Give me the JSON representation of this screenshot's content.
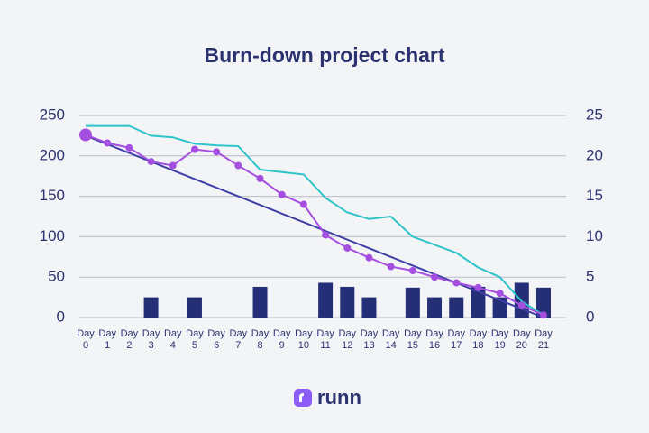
{
  "chart_data": {
    "type": "burndown",
    "title": "Burn-down project chart",
    "categories": [
      "Day 0",
      "Day 1",
      "Day 2",
      "Day 3",
      "Day 4",
      "Day 5",
      "Day 6",
      "Day 7",
      "Day 8",
      "Day 9",
      "Day 10",
      "Day 11",
      "Day 12",
      "Day 13",
      "Day 14",
      "Day 15",
      "Day 16",
      "Day 17",
      "Day 18",
      "Day 19",
      "Day 20",
      "Day 21"
    ],
    "series": [
      {
        "type": "bar",
        "axis": "y2",
        "color": "#252f78",
        "values": [
          null,
          null,
          null,
          2.5,
          null,
          2.5,
          null,
          null,
          3.8,
          null,
          null,
          4.3,
          3.8,
          2.5,
          null,
          3.7,
          2.5,
          2.5,
          3.8,
          2.5,
          4.3,
          3.7
        ]
      },
      {
        "type": "line",
        "color": "#2ec4c9",
        "values": [
          237,
          237,
          237,
          225,
          223,
          215,
          213,
          212,
          183,
          180,
          177,
          148,
          130,
          122,
          125,
          100,
          90,
          80,
          62,
          50,
          20,
          3
        ]
      },
      {
        "type": "line",
        "color": "#3f3fa8",
        "values": [
          225,
          214.3,
          203.6,
          192.9,
          182.1,
          171.4,
          160.7,
          150,
          139.3,
          128.6,
          117.9,
          107.1,
          96.4,
          85.7,
          75,
          64.3,
          53.6,
          42.9,
          32.1,
          21.4,
          10.7,
          0
        ]
      },
      {
        "type": "line",
        "color": "#a54fe0",
        "markers": true,
        "values": [
          226,
          216,
          210,
          193,
          188,
          208,
          205,
          188,
          172,
          152,
          140,
          102,
          86,
          74,
          63,
          58,
          50,
          43,
          37,
          30,
          15,
          3
        ]
      }
    ],
    "ylim": [
      0,
      250
    ],
    "yticks": [
      0,
      50,
      100,
      150,
      200,
      250
    ],
    "y2lim": [
      0,
      25
    ],
    "y2ticks": [
      0,
      5,
      10,
      15,
      20,
      25
    ],
    "grid": true
  },
  "logo": "runn"
}
